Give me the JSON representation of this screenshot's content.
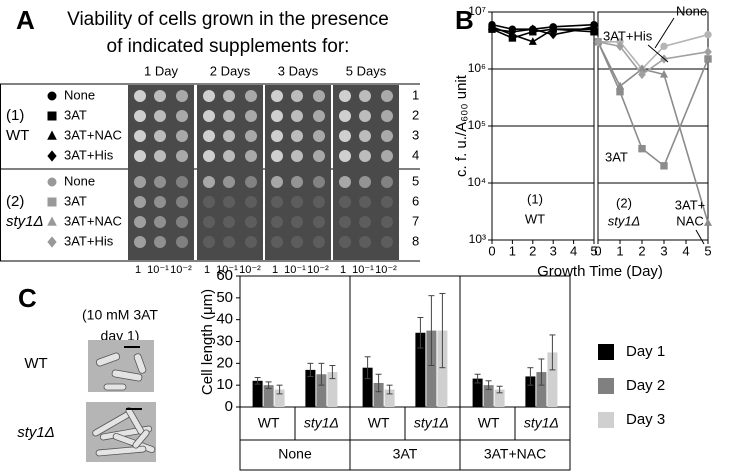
{
  "panel_a": {
    "label": "A",
    "title_lines": [
      "Viability of cells  grown in the presence",
      "of indicated supplements for:"
    ],
    "columns": [
      "1 Day",
      "2 Days",
      "3 Days",
      "5 Days"
    ],
    "strains": [
      {
        "number": "(1)",
        "name": "WT",
        "rows": [
          {
            "label": "None",
            "marker": "circle",
            "color": "#000000"
          },
          {
            "label": "3AT",
            "marker": "square",
            "color": "#000000"
          },
          {
            "label": "3AT+NAC",
            "marker": "triangle",
            "color": "#000000"
          },
          {
            "label": "3AT+His",
            "marker": "diamond",
            "color": "#000000"
          }
        ]
      },
      {
        "number": "(2)",
        "name": "sty1Δ",
        "rows": [
          {
            "label": "None",
            "marker": "circle",
            "color": "#999999"
          },
          {
            "label": "3AT",
            "marker": "square",
            "color": "#999999"
          },
          {
            "label": "3AT+NAC",
            "marker": "triangle",
            "color": "#999999"
          },
          {
            "label": "3AT+His",
            "marker": "diamond",
            "color": "#999999"
          }
        ]
      }
    ],
    "row_numbers": [
      1,
      2,
      3,
      4,
      5,
      6,
      7,
      8
    ],
    "dilutions": [
      "1",
      "10⁻¹",
      "10⁻²"
    ]
  },
  "panel_c_images": {
    "caption_lines": [
      "(10 mM 3AT",
      "day 1)"
    ],
    "labels": [
      "WT",
      "sty1Δ"
    ]
  },
  "chart_data": [
    {
      "type": "line",
      "panel_label": "B",
      "ylabel": "c. f. u./A₆₀₀ unit",
      "xlabel": "Growth Time (Day)",
      "ylog": true,
      "ylim": [
        1000,
        10000000
      ],
      "yticks": [
        {
          "value": 1000,
          "label": "10³"
        },
        {
          "value": 10000,
          "label": "10⁴"
        },
        {
          "value": 100000,
          "label": "10⁵"
        },
        {
          "value": 1000000,
          "label": "10⁶"
        },
        {
          "value": 10000000,
          "label": "10⁷"
        }
      ],
      "xlim": [
        0,
        5
      ],
      "xticks": [
        0,
        1,
        2,
        3,
        4,
        5
      ],
      "grid": true,
      "x": [
        0,
        1,
        2,
        3,
        5
      ],
      "series": [
        {
          "name": "None",
          "marker": "circle",
          "color": "#000000",
          "values": [
            6000000,
            5000000,
            5000000,
            5500000,
            6000000
          ]
        },
        {
          "name": "3AT",
          "marker": "square",
          "color": "#000000",
          "values": [
            5000000,
            3500000,
            4500000,
            5000000,
            4500000
          ]
        },
        {
          "name": "3AT+NAC",
          "marker": "triangle",
          "color": "#000000",
          "values": [
            5500000,
            4000000,
            3000000,
            5000000,
            5000000
          ]
        },
        {
          "name": "3AT+His",
          "marker": "diamond",
          "color": "#000000",
          "values": [
            5000000,
            4500000,
            5000000,
            4000000,
            5500000
          ]
        }
      ],
      "annotations": [
        "(1)",
        "WT"
      ]
    },
    {
      "type": "line",
      "ylog": true,
      "ylim": [
        1000,
        10000000
      ],
      "yticks": [
        1000,
        10000,
        100000,
        1000000,
        10000000
      ],
      "xlim": [
        0,
        5
      ],
      "xticks": [
        0,
        1,
        2,
        3,
        4,
        5
      ],
      "grid": true,
      "x": [
        0,
        1,
        2,
        3,
        5
      ],
      "series": [
        {
          "name": "None",
          "marker": "circle",
          "color": "#b4b4b4",
          "values": [
            3000000,
            3000000,
            1000000,
            2500000,
            4000000
          ]
        },
        {
          "name": "3AT",
          "marker": "square",
          "color": "#8c8c8c",
          "values": [
            3000000,
            400000,
            40000,
            20000,
            1500000
          ]
        },
        {
          "name": "3AT+NAC",
          "marker": "triangle",
          "color": "#8c8c8c",
          "values": [
            3000000,
            500000,
            1000000,
            800000,
            2000
          ]
        },
        {
          "name": "3AT+His",
          "marker": "diamond",
          "color": "#a0a0a0",
          "values": [
            3000000,
            2500000,
            800000,
            1500000,
            2000000
          ]
        }
      ],
      "annotations": [
        "3AT+His",
        "None",
        "3AT",
        "3AT+",
        "NAC",
        "(2)",
        "sty1Δ"
      ]
    },
    {
      "type": "bar",
      "panel_label": "C",
      "ylabel": "Cell length (μm)",
      "ylim": [
        0,
        60
      ],
      "yticks": [
        0,
        10,
        20,
        30,
        40,
        50,
        60
      ],
      "categories": [
        "WT",
        "sty1Δ",
        "WT",
        "sty1Δ",
        "WT",
        "sty1Δ"
      ],
      "groups": [
        "None",
        "3AT",
        "3AT+NAC"
      ],
      "series": [
        {
          "name": "Day 1",
          "color": "#000000",
          "values": [
            12,
            17,
            18,
            34,
            13,
            14
          ],
          "errors": [
            1.5,
            3,
            5,
            7,
            2,
            4
          ]
        },
        {
          "name": "Day 2",
          "color": "#808080",
          "values": [
            10,
            15,
            11,
            35,
            10,
            16
          ],
          "errors": [
            1.5,
            5,
            4,
            16,
            2,
            6
          ]
        },
        {
          "name": "Day 3",
          "color": "#d0d0d0",
          "values": [
            8,
            16,
            8,
            35,
            8,
            25
          ],
          "errors": [
            2,
            3,
            2,
            17,
            1.5,
            8
          ]
        }
      ]
    }
  ]
}
